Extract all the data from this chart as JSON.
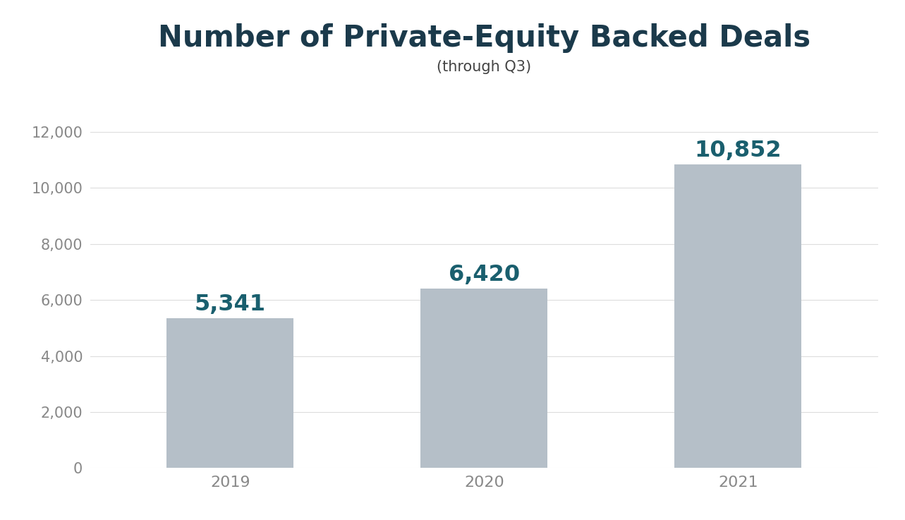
{
  "title": "Number of Private-Equity Backed Deals",
  "subtitle": "(through Q3)",
  "categories": [
    "2019",
    "2020",
    "2021"
  ],
  "values": [
    5341,
    6420,
    10852
  ],
  "labels": [
    "5,341",
    "6,420",
    "10,852"
  ],
  "bar_color": "#b5bfc8",
  "hatch_color": "#ffffff",
  "hatch_linewidth": 2.5,
  "label_color": "#1a5f6e",
  "title_color": "#1b3a4b",
  "subtitle_color": "#444444",
  "tick_color": "#888888",
  "background_color": "#ffffff",
  "grid_color": "#dddddd",
  "ylim": [
    0,
    13000
  ],
  "yticks": [
    0,
    2000,
    4000,
    6000,
    8000,
    10000,
    12000
  ],
  "title_fontsize": 30,
  "subtitle_fontsize": 15,
  "label_fontsize": 23,
  "tick_fontsize": 15,
  "bar_width": 0.5,
  "figsize": [
    12.83,
    7.37
  ],
  "dpi": 100
}
